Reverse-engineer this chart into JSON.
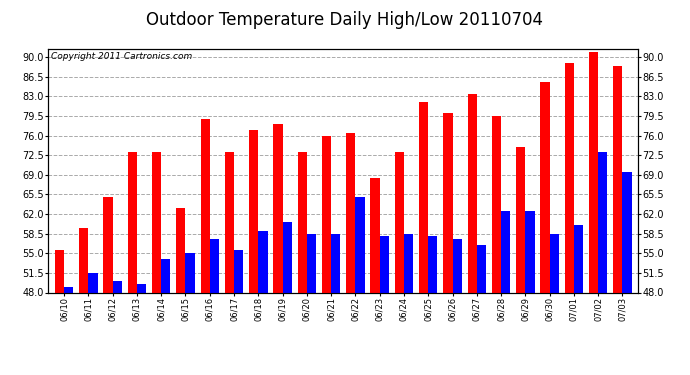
{
  "title": "Outdoor Temperature Daily High/Low 20110704",
  "copyright_text": "Copyright 2011 Cartronics.com",
  "dates": [
    "06/10",
    "06/11",
    "06/12",
    "06/13",
    "06/14",
    "06/15",
    "06/16",
    "06/17",
    "06/18",
    "06/19",
    "06/20",
    "06/21",
    "06/22",
    "06/23",
    "06/24",
    "06/25",
    "06/26",
    "06/27",
    "06/28",
    "06/29",
    "06/30",
    "07/01",
    "07/02",
    "07/03"
  ],
  "highs": [
    55.5,
    59.5,
    65.0,
    73.0,
    73.0,
    63.0,
    79.0,
    73.0,
    77.0,
    78.0,
    73.0,
    76.0,
    76.5,
    68.5,
    73.0,
    82.0,
    80.0,
    83.5,
    79.5,
    74.0,
    85.5,
    89.0,
    91.0,
    88.5
  ],
  "lows": [
    49.0,
    51.5,
    50.0,
    49.5,
    54.0,
    55.0,
    57.5,
    55.5,
    59.0,
    60.5,
    58.5,
    58.5,
    65.0,
    58.0,
    58.5,
    58.0,
    57.5,
    56.5,
    62.5,
    62.5,
    58.5,
    60.0,
    73.0,
    69.5
  ],
  "high_color": "#ff0000",
  "low_color": "#0000ff",
  "bg_color": "#ffffff",
  "grid_color": "#aaaaaa",
  "ymin": 48.0,
  "ymax": 91.5,
  "yticks": [
    48.0,
    51.5,
    55.0,
    58.5,
    62.0,
    65.5,
    69.0,
    72.5,
    76.0,
    79.5,
    83.0,
    86.5,
    90.0
  ],
  "title_fontsize": 12,
  "copyright_fontsize": 6.5,
  "tick_fontsize": 7,
  "xtick_fontsize": 6,
  "bar_width": 0.38
}
